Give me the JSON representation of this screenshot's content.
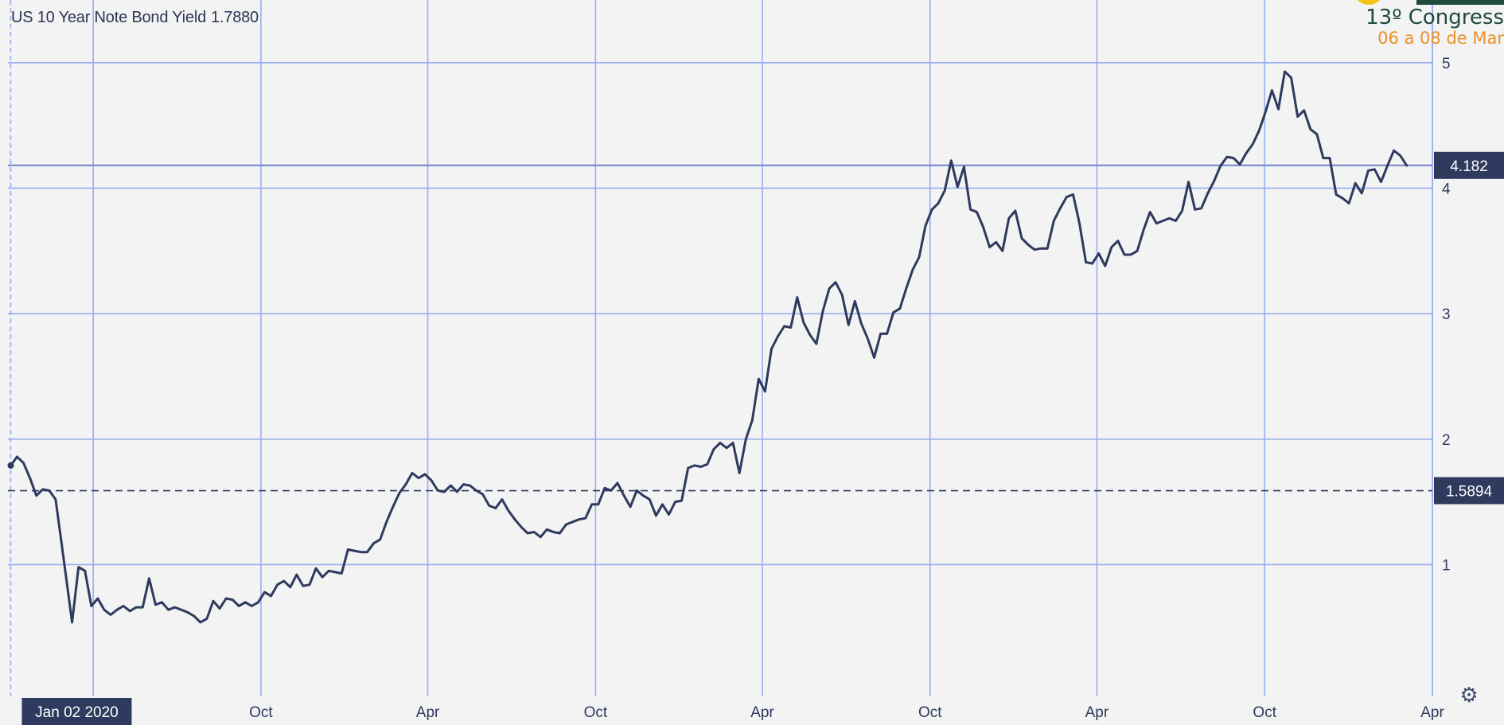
{
  "chart_title": "US 10 Year Note Bond Yield",
  "chart_title_value": "1.7880",
  "overlay": {
    "line1": "13º Congress",
    "line2": "06 a 08 de Mar"
  },
  "settings_icon": "gear-icon",
  "colors": {
    "background": "#f3f3f3",
    "grid": "#9aaef0",
    "line": "#2e3a5e",
    "label_box": "#2e3a5e",
    "label_text": "#ffffff",
    "axis_text": "#2e3a5e"
  },
  "chart_data": {
    "type": "line",
    "title": "US 10 Year Note Bond Yield",
    "x_axis_ticks": [
      {
        "date": "2020-01-02",
        "label": "Jan 02 2020",
        "highlight": true
      },
      {
        "date": "2020-10-01",
        "label": "Oct"
      },
      {
        "date": "2021-04-01",
        "label": "Apr"
      },
      {
        "date": "2021-10-01",
        "label": "Oct"
      },
      {
        "date": "2022-04-01",
        "label": "Apr"
      },
      {
        "date": "2022-10-01",
        "label": "Oct"
      },
      {
        "date": "2023-04-01",
        "label": "Apr"
      },
      {
        "date": "2023-10-01",
        "label": "Oct"
      },
      {
        "date": "2024-04-01",
        "label": "Apr"
      }
    ],
    "x_grid_dates": [
      "2020-01-02",
      "2020-04-01",
      "2020-10-01",
      "2021-04-01",
      "2021-10-01",
      "2022-04-01",
      "2022-10-01",
      "2023-04-01",
      "2023-10-01",
      "2024-04-01"
    ],
    "y_ticks": [
      1,
      2,
      3,
      4,
      5
    ],
    "ylim": [
      -0.05,
      5.5
    ],
    "xlim": [
      "2019-12-30",
      "2024-04-01"
    ],
    "current_value": {
      "value": 4.182,
      "label": "4.182",
      "style": "solid"
    },
    "reference_value": {
      "value": 1.5894,
      "label": "1.5894",
      "style": "dashed"
    },
    "grid": true,
    "series": [
      {
        "x": [
          "2020-01-02",
          "2020-01-09",
          "2020-01-16",
          "2020-01-23",
          "2020-01-30",
          "2020-02-06",
          "2020-02-13",
          "2020-02-20",
          "2020-02-27",
          "2020-03-05",
          "2020-03-09",
          "2020-03-16",
          "2020-03-23",
          "2020-03-30",
          "2020-04-06",
          "2020-04-13",
          "2020-04-20",
          "2020-04-27",
          "2020-05-04",
          "2020-05-11",
          "2020-05-18",
          "2020-05-25",
          "2020-06-01",
          "2020-06-08",
          "2020-06-15",
          "2020-06-22",
          "2020-06-29",
          "2020-07-06",
          "2020-07-13",
          "2020-07-20",
          "2020-07-27",
          "2020-08-03",
          "2020-08-10",
          "2020-08-17",
          "2020-08-24",
          "2020-08-31",
          "2020-09-07",
          "2020-09-14",
          "2020-09-21",
          "2020-09-28",
          "2020-10-05",
          "2020-10-12",
          "2020-10-19",
          "2020-10-26",
          "2020-11-02",
          "2020-11-09",
          "2020-11-16",
          "2020-11-23",
          "2020-11-30",
          "2020-12-07",
          "2020-12-14",
          "2020-12-21",
          "2020-12-28",
          "2021-01-04",
          "2021-01-11",
          "2021-01-18",
          "2021-01-25",
          "2021-02-01",
          "2021-02-08",
          "2021-02-15",
          "2021-02-22",
          "2021-03-01",
          "2021-03-08",
          "2021-03-15",
          "2021-03-22",
          "2021-03-29",
          "2021-04-05",
          "2021-04-12",
          "2021-04-19",
          "2021-04-26",
          "2021-05-03",
          "2021-05-10",
          "2021-05-17",
          "2021-05-24",
          "2021-05-31",
          "2021-06-07",
          "2021-06-14",
          "2021-06-21",
          "2021-06-28",
          "2021-07-05",
          "2021-07-12",
          "2021-07-19",
          "2021-07-26",
          "2021-08-02",
          "2021-08-09",
          "2021-08-16",
          "2021-08-23",
          "2021-08-30",
          "2021-09-06",
          "2021-09-13",
          "2021-09-20",
          "2021-09-27",
          "2021-10-04",
          "2021-10-11",
          "2021-10-18",
          "2021-10-25",
          "2021-11-01",
          "2021-11-08",
          "2021-11-15",
          "2021-11-22",
          "2021-11-29",
          "2021-12-06",
          "2021-12-13",
          "2021-12-20",
          "2021-12-27",
          "2022-01-03",
          "2022-01-10",
          "2022-01-17",
          "2022-01-24",
          "2022-01-31",
          "2022-02-07",
          "2022-02-14",
          "2022-02-21",
          "2022-02-28",
          "2022-03-07",
          "2022-03-14",
          "2022-03-21",
          "2022-03-28",
          "2022-04-04",
          "2022-04-11",
          "2022-04-18",
          "2022-04-25",
          "2022-05-02",
          "2022-05-09",
          "2022-05-16",
          "2022-05-23",
          "2022-05-30",
          "2022-06-06",
          "2022-06-13",
          "2022-06-20",
          "2022-06-27",
          "2022-07-04",
          "2022-07-11",
          "2022-07-18",
          "2022-07-25",
          "2022-08-01",
          "2022-08-08",
          "2022-08-15",
          "2022-08-22",
          "2022-08-29",
          "2022-09-05",
          "2022-09-12",
          "2022-09-19",
          "2022-09-26",
          "2022-10-03",
          "2022-10-10",
          "2022-10-17",
          "2022-10-24",
          "2022-10-31",
          "2022-11-07",
          "2022-11-14",
          "2022-11-21",
          "2022-11-28",
          "2022-12-05",
          "2022-12-12",
          "2022-12-19",
          "2022-12-26",
          "2023-01-02",
          "2023-01-09",
          "2023-01-16",
          "2023-01-23",
          "2023-01-30",
          "2023-02-06",
          "2023-02-13",
          "2023-02-20",
          "2023-02-27",
          "2023-03-06",
          "2023-03-13",
          "2023-03-20",
          "2023-03-27",
          "2023-04-03",
          "2023-04-10",
          "2023-04-17",
          "2023-04-24",
          "2023-05-01",
          "2023-05-08",
          "2023-05-15",
          "2023-05-22",
          "2023-05-29",
          "2023-06-05",
          "2023-06-12",
          "2023-06-19",
          "2023-06-26",
          "2023-07-03",
          "2023-07-10",
          "2023-07-17",
          "2023-07-24",
          "2023-07-31",
          "2023-08-07",
          "2023-08-14",
          "2023-08-21",
          "2023-08-28",
          "2023-09-04",
          "2023-09-11",
          "2023-09-18",
          "2023-09-25",
          "2023-10-02",
          "2023-10-09",
          "2023-10-16",
          "2023-10-23",
          "2023-10-30",
          "2023-11-06",
          "2023-11-13",
          "2023-11-20",
          "2023-11-27",
          "2023-12-04",
          "2023-12-11",
          "2023-12-18",
          "2023-12-25",
          "2024-01-01",
          "2024-01-08",
          "2024-01-15",
          "2024-01-22",
          "2024-01-29",
          "2024-02-05",
          "2024-02-12",
          "2024-02-19",
          "2024-02-26",
          "2024-03-04"
        ],
        "y": [
          1.79,
          1.86,
          1.81,
          1.69,
          1.55,
          1.6,
          1.59,
          1.52,
          1.14,
          0.76,
          0.54,
          0.98,
          0.95,
          0.67,
          0.73,
          0.64,
          0.6,
          0.64,
          0.67,
          0.63,
          0.66,
          0.66,
          0.89,
          0.68,
          0.7,
          0.64,
          0.66,
          0.64,
          0.62,
          0.59,
          0.54,
          0.57,
          0.71,
          0.65,
          0.73,
          0.72,
          0.67,
          0.7,
          0.67,
          0.7,
          0.78,
          0.75,
          0.84,
          0.87,
          0.82,
          0.92,
          0.83,
          0.84,
          0.97,
          0.9,
          0.95,
          0.94,
          0.93,
          1.12,
          1.11,
          1.1,
          1.1,
          1.17,
          1.2,
          1.34,
          1.46,
          1.57,
          1.64,
          1.73,
          1.69,
          1.72,
          1.67,
          1.59,
          1.58,
          1.63,
          1.58,
          1.64,
          1.63,
          1.59,
          1.56,
          1.47,
          1.45,
          1.52,
          1.43,
          1.36,
          1.3,
          1.25,
          1.26,
          1.22,
          1.28,
          1.26,
          1.25,
          1.32,
          1.34,
          1.36,
          1.37,
          1.48,
          1.48,
          1.61,
          1.59,
          1.65,
          1.55,
          1.46,
          1.59,
          1.55,
          1.52,
          1.39,
          1.48,
          1.4,
          1.5,
          1.51,
          1.77,
          1.79,
          1.78,
          1.8,
          1.92,
          1.97,
          1.93,
          1.97,
          1.73,
          2.0,
          2.15,
          2.48,
          2.38,
          2.72,
          2.82,
          2.9,
          2.89,
          3.13,
          2.93,
          2.83,
          2.76,
          3.02,
          3.2,
          3.25,
          3.15,
          2.91,
          3.1,
          2.92,
          2.8,
          2.65,
          2.84,
          2.84,
          3.01,
          3.04,
          3.2,
          3.35,
          3.45,
          3.7,
          3.83,
          3.88,
          3.98,
          4.22,
          4.01,
          4.17,
          3.83,
          3.81,
          3.69,
          3.53,
          3.57,
          3.5,
          3.76,
          3.82,
          3.6,
          3.55,
          3.51,
          3.52,
          3.52,
          3.74,
          3.84,
          3.93,
          3.95,
          3.72,
          3.41,
          3.4,
          3.48,
          3.38,
          3.53,
          3.58,
          3.47,
          3.47,
          3.5,
          3.67,
          3.81,
          3.72,
          3.74,
          3.76,
          3.74,
          3.82,
          4.05,
          3.83,
          3.84,
          3.96,
          4.06,
          4.18,
          4.25,
          4.24,
          4.19,
          4.28,
          4.35,
          4.46,
          4.61,
          4.78,
          4.63,
          4.93,
          4.88,
          4.57,
          4.62,
          4.47,
          4.43,
          4.24,
          4.24,
          3.95,
          3.92,
          3.88,
          4.04,
          3.96,
          4.14,
          4.15,
          4.05,
          4.18,
          4.3,
          4.26,
          4.18
        ]
      }
    ]
  }
}
